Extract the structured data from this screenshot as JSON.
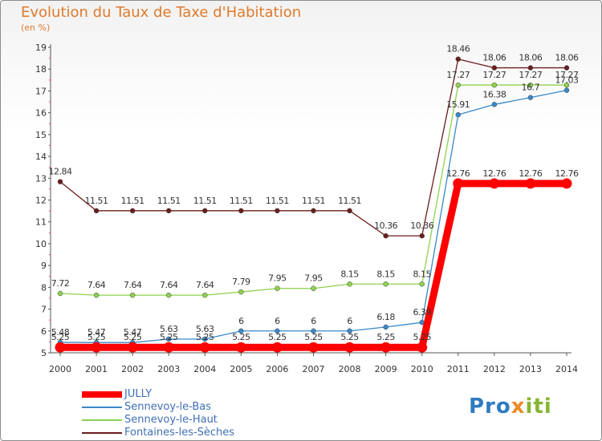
{
  "title": "Evolution du Taux de Taxe d'Habitation",
  "unit": "(en %)",
  "logo": {
    "part1": "Pro",
    "part2": "x",
    "part3": "iti"
  },
  "chart_data": {
    "type": "line",
    "title": "Evolution du Taux de Taxe d'Habitation",
    "ylabel": "(en %)",
    "xlabel": "",
    "ylim": [
      5,
      19
    ],
    "yticks": [
      "5",
      "6",
      "7",
      "8",
      "9",
      "10",
      "11",
      "12",
      "13",
      "14",
      "15",
      "16",
      "17",
      "18",
      "19"
    ],
    "grid": false,
    "legend_position": "bottom-left",
    "categories": [
      "2000",
      "2001",
      "2002",
      "2003",
      "2004",
      "2005",
      "2006",
      "2007",
      "2008",
      "2009",
      "2010",
      "2011",
      "2012",
      "2013",
      "2014"
    ],
    "series": [
      {
        "name": "JULLY",
        "color": "#ff0000",
        "values": [
          5.25,
          5.25,
          5.25,
          5.25,
          5.25,
          5.25,
          5.25,
          5.25,
          5.25,
          5.25,
          5.25,
          12.76,
          12.76,
          12.76,
          12.76
        ],
        "labels": [
          "5.25",
          "5.25",
          "5.25",
          "5.25",
          "5.25",
          "5.25",
          "5.25",
          "5.25",
          "5.25",
          "5.25",
          "5.25",
          "12.76",
          "12.76",
          "12.76",
          "12.76"
        ]
      },
      {
        "name": "Sennevoy-le-Bas",
        "color": "#3a88c8",
        "values": [
          5.48,
          5.47,
          5.47,
          5.63,
          5.63,
          6,
          6,
          6,
          6,
          6.18,
          6.39,
          15.91,
          16.38,
          16.7,
          17.03
        ],
        "labels": [
          "5.48",
          "5.47",
          "5.47",
          "5.63",
          "5.63",
          "6",
          "6",
          "6",
          "6",
          "6.18",
          "6.39",
          "15.91",
          "16.38",
          "16.7",
          "17.03"
        ]
      },
      {
        "name": "Sennevoy-le-Haut",
        "color": "#8fd14f",
        "values": [
          7.72,
          7.64,
          7.64,
          7.64,
          7.64,
          7.79,
          7.95,
          7.95,
          8.15,
          8.15,
          8.15,
          17.27,
          17.27,
          17.27,
          17.27
        ],
        "labels": [
          "7.72",
          "7.64",
          "7.64",
          "7.64",
          "7.64",
          "7.79",
          "7.95",
          "7.95",
          "8.15",
          "8.15",
          "8.15",
          "17.27",
          "17.27",
          "17.27",
          "17.27"
        ]
      },
      {
        "name": "Fontaines-les-Sèches",
        "color": "#6b1d1d",
        "values": [
          12.84,
          11.51,
          11.51,
          11.51,
          11.51,
          11.51,
          11.51,
          11.51,
          11.51,
          10.36,
          10.36,
          18.46,
          18.06,
          18.06,
          18.06
        ],
        "labels": [
          "12.84",
          "11.51",
          "11.51",
          "11.51",
          "11.51",
          "11.51",
          "11.51",
          "11.51",
          "11.51",
          "10.36",
          "10.36",
          "18.46",
          "18.06",
          "18.06",
          "18.06"
        ]
      }
    ]
  }
}
